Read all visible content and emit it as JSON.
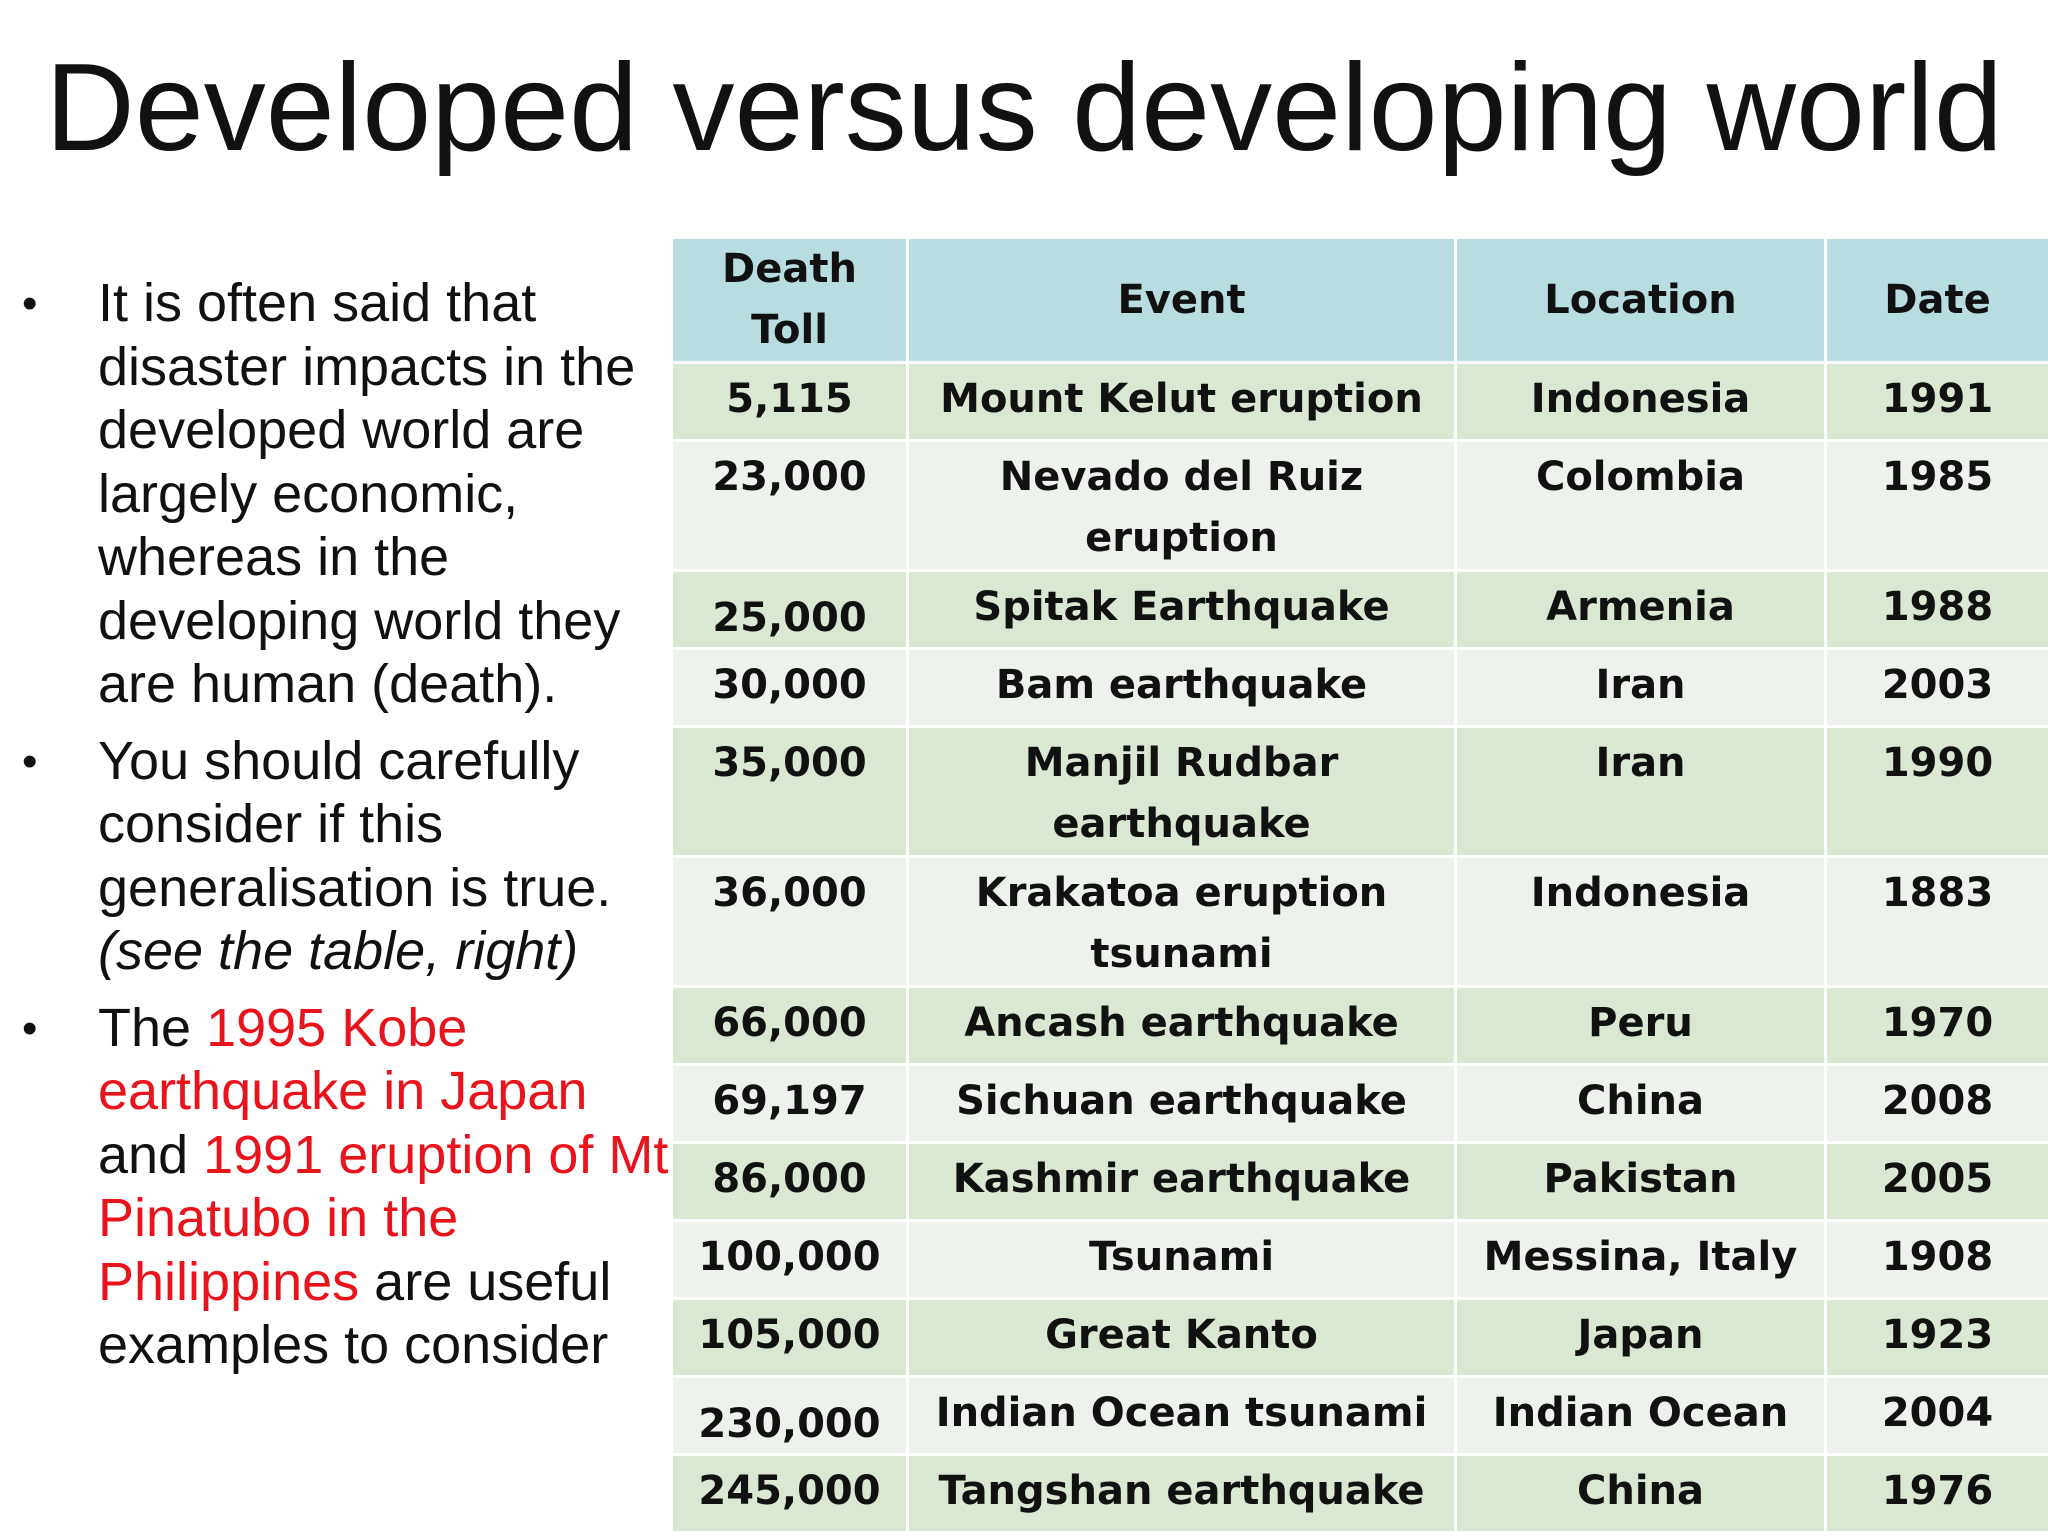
{
  "title": "Developed versus developing world",
  "bullets": {
    "b1": "It is often said that disaster impacts in the developed world are largely economic, whereas in the developing world they are human (death).",
    "b2_main": "You should carefully consider if this generalisation is true.",
    "b2_italic": "(see the table, right)",
    "b3_1": "The ",
    "b3_2": "1995 Kobe earthquake in Japan",
    "b3_3": " and ",
    "b3_4": "1991 eruption of Mt Pinatubo in the Philippines",
    "b3_5": " are useful examples to consider",
    "bullet_symbol": "•"
  },
  "table": {
    "headers": [
      "Death Toll",
      "Event",
      "Location",
      "Date"
    ],
    "rows": [
      {
        "toll": "5,115",
        "event": "Mount Kelut  eruption",
        "location": "Indonesia",
        "date": "1991"
      },
      {
        "toll": "23,000",
        "event": "Nevado del Ruiz eruption",
        "location": "Colombia",
        "date": "1985"
      },
      {
        "toll": "25,000",
        "event": "Spitak Earthquake",
        "location": "Armenia",
        "date": "1988"
      },
      {
        "toll": "30,000",
        "event": "Bam earthquake",
        "location": "Iran",
        "date": "2003"
      },
      {
        "toll": "35,000",
        "event": "Manjil Rudbar earthquake",
        "location": "Iran",
        "date": "1990"
      },
      {
        "toll": "36,000",
        "event": "Krakatoa eruption tsunami",
        "location": "Indonesia",
        "date": "1883"
      },
      {
        "toll": "66,000",
        "event": "Ancash earthquake",
        "location": "Peru",
        "date": "1970"
      },
      {
        "toll": "69,197",
        "event": "Sichuan earthquake",
        "location": "China",
        "date": "2008"
      },
      {
        "toll": "86,000",
        "event": "Kashmir earthquake",
        "location": "Pakistan",
        "date": "2005"
      },
      {
        "toll": "100,000",
        "event": "Tsunami",
        "location": "Messina, Italy",
        "date": "1908"
      },
      {
        "toll": "105,000",
        "event": "Great Kanto",
        "location": "Japan",
        "date": "1923"
      },
      {
        "toll": "230,000",
        "event": "Indian Ocean tsunami",
        "location": "Indian Ocean",
        "date": "2004"
      },
      {
        "toll": "245,000",
        "event": "Tangshan earthquake",
        "location": "China",
        "date": "1976"
      }
    ]
  },
  "colors": {
    "text": "#111111",
    "highlight": "#e8131b",
    "header_bg": "#b8dde1",
    "row_odd_bg": "#d9e7d3",
    "row_even_bg": "#eef2ec"
  }
}
